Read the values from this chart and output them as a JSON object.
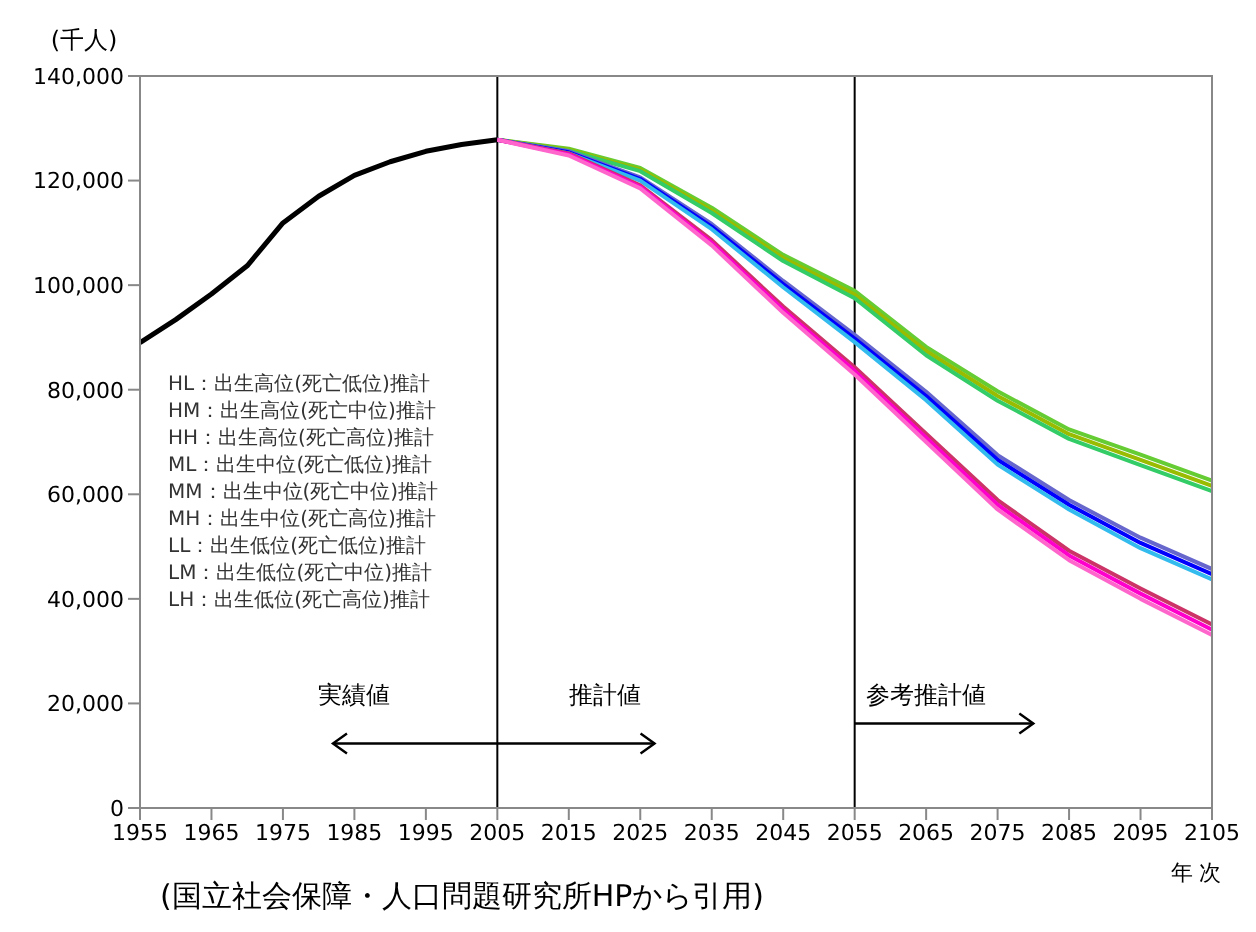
{
  "chart_data": {
    "type": "line",
    "ylabel": "(千人)",
    "xlabel": "年 次",
    "xlim": [
      1955,
      2105
    ],
    "xticks": [
      1955,
      1965,
      1975,
      1985,
      1995,
      2005,
      2015,
      2025,
      2035,
      2045,
      2055,
      2065,
      2075,
      2085,
      2095,
      2105
    ],
    "ylim": [
      0,
      140000
    ],
    "yticks": [
      0,
      {
        "value": 20000,
        "label": "20,000"
      },
      {
        "value": 40000,
        "label": "40,000"
      },
      {
        "value": 60000,
        "label": "60,000"
      },
      {
        "value": 80000,
        "label": "80,000"
      },
      {
        "value": 100000,
        "label": "100,000"
      },
      {
        "value": 120000,
        "label": "120,000"
      },
      {
        "value": 140000,
        "label": "140,000"
      }
    ],
    "grid": false,
    "marker": "none",
    "line_style": "solid",
    "ref_lines": [
      {
        "axis": "x",
        "value": 2005,
        "color": "#000000"
      },
      {
        "axis": "x",
        "value": 2055,
        "color": "#000000"
      }
    ],
    "series": [
      {
        "color": "#000000",
        "x": [
          1955,
          1960,
          1965,
          1970,
          1975,
          1980,
          1985,
          1990,
          1995,
          2000,
          2005
        ],
        "values": [
          89000,
          93400,
          98300,
          103700,
          111900,
          117000,
          121000,
          123600,
          125600,
          126900,
          127800
        ]
      },
      {
        "color": "#66cc33",
        "x": [
          2005,
          2015,
          2025,
          2035,
          2045,
          2055,
          2065,
          2075,
          2085,
          2095,
          2105
        ],
        "values": [
          127800,
          126100,
          122400,
          114800,
          105800,
          98900,
          88200,
          79700,
          72400,
          67600,
          62600
        ]
      },
      {
        "color": "#99bb00",
        "x": [
          2005,
          2015,
          2025,
          2035,
          2045,
          2055,
          2065,
          2075,
          2085,
          2095,
          2105
        ],
        "values": [
          127800,
          125900,
          122100,
          114300,
          105200,
          98200,
          87400,
          78800,
          71500,
          66600,
          61600
        ]
      },
      {
        "color": "#33cc66",
        "x": [
          2005,
          2015,
          2025,
          2035,
          2045,
          2055,
          2065,
          2075,
          2085,
          2095,
          2105
        ],
        "values": [
          127800,
          125700,
          121800,
          113800,
          104600,
          97500,
          86600,
          77900,
          70600,
          65600,
          60600
        ]
      },
      {
        "color": "#6666cc",
        "x": [
          2005,
          2015,
          2025,
          2035,
          2045,
          2055,
          2065,
          2075,
          2085,
          2095,
          2105
        ],
        "values": [
          127800,
          125600,
          120600,
          111700,
          100800,
          90500,
          79600,
          67500,
          58900,
          51700,
          45700
        ]
      },
      {
        "color": "#0000ff",
        "x": [
          2005,
          2015,
          2025,
          2035,
          2045,
          2055,
          2065,
          2075,
          2085,
          2095,
          2105
        ],
        "values": [
          127800,
          125400,
          120300,
          111200,
          100200,
          89800,
          78800,
          66600,
          58000,
          50700,
          44700
        ]
      },
      {
        "color": "#33bbee",
        "x": [
          2005,
          2015,
          2025,
          2035,
          2045,
          2055,
          2065,
          2075,
          2085,
          2095,
          2105
        ],
        "values": [
          127800,
          125200,
          120000,
          110700,
          99600,
          89100,
          78000,
          65700,
          57100,
          49700,
          43700
        ]
      },
      {
        "color": "#cc3366",
        "x": [
          2005,
          2015,
          2025,
          2035,
          2045,
          2055,
          2065,
          2075,
          2085,
          2095,
          2105
        ],
        "values": [
          127800,
          125200,
          119100,
          108600,
          95900,
          84300,
          71600,
          58900,
          49200,
          42000,
          35100
        ]
      },
      {
        "color": "#ff00cc",
        "x": [
          2005,
          2015,
          2025,
          2035,
          2045,
          2055,
          2065,
          2075,
          2085,
          2095,
          2105
        ],
        "values": [
          127800,
          125000,
          118800,
          108100,
          95300,
          83600,
          70800,
          58000,
          48300,
          41000,
          34100
        ]
      },
      {
        "color": "#ff66cc",
        "x": [
          2005,
          2015,
          2025,
          2035,
          2045,
          2055,
          2065,
          2075,
          2085,
          2095,
          2105
        ],
        "values": [
          127800,
          124800,
          118500,
          107600,
          94700,
          82900,
          70000,
          57100,
          47400,
          40000,
          33100
        ]
      }
    ],
    "annotations": [
      "HL：出生高位(死亡低位)推計",
      "HM：出生高位(死亡中位)推計",
      "HH：出生高位(死亡高位)推計",
      "ML：出生中位(死亡低位)推計",
      "MM：出生中位(死亡中位)推計",
      "MH：出生中位(死亡高位)推計",
      "LL：出生低位(死亡低位)推計",
      "LM：出生低位(死亡中位)推計",
      "LH：出生低位(死亡高位)推計",
      "実績値",
      "推計値",
      "参考推計値",
      "(国立社会保障・人口問題研究所HPから引用)"
    ]
  }
}
